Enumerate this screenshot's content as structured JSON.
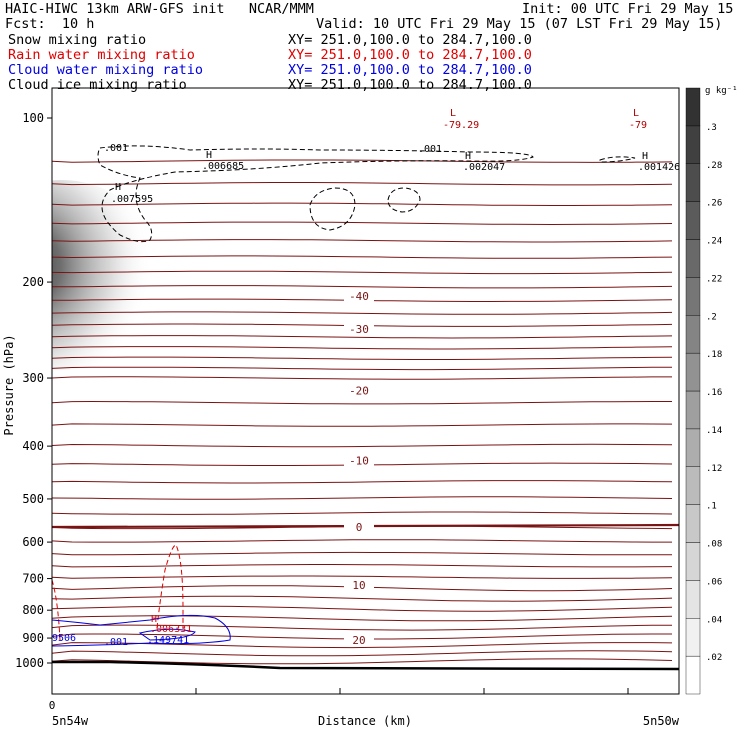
{
  "header": {
    "title_left": "HAIC-HIWC 13km ARW-GFS init   NCAR/MMM",
    "init": "Init: 00 UTC Fri 29 May 15",
    "fcst": "Fcst:  10 h",
    "valid": "Valid: 10 UTC Fri 29 May 15 (07 LST Fri 29 May 15)"
  },
  "fields": [
    {
      "label": "Snow mixing ratio",
      "xy": "XY= 251.0,100.0 to 284.7,100.0",
      "color": "#000000"
    },
    {
      "label": "Rain water mixing ratio",
      "xy": "XY= 251.0,100.0 to 284.7,100.0",
      "color": "#e00000"
    },
    {
      "label": "Cloud water mixing ratio",
      "xy": "XY= 251.0,100.0 to 284.7,100.0",
      "color": "#0000e0"
    },
    {
      "label": "Cloud ice mixing ratio",
      "xy": "XY= 251.0,100.0 to 284.7,100.0",
      "color": "#000000"
    }
  ],
  "chart_data": {
    "type": "cross-section",
    "ylabel": "Pressure (hPa)",
    "xlabel": "Distance (km)",
    "y_ticks": [
      100,
      200,
      300,
      400,
      500,
      600,
      700,
      800,
      900,
      1000
    ],
    "y_axis": "log-pressure, reversed",
    "x_tick_label": "0",
    "x_left_label": "5n54w",
    "x_right_label": "5n50w",
    "temperature_labels": [
      {
        "value": "-40",
        "p": 212
      },
      {
        "value": "-30",
        "p": 244
      },
      {
        "value": "-20",
        "p": 316
      },
      {
        "value": "-10",
        "p": 425
      },
      {
        "value": "0",
        "p": 563
      },
      {
        "value": "10",
        "p": 720
      },
      {
        "value": "20",
        "p": 908
      }
    ],
    "markers": [
      {
        "kind": "L",
        "value": "-79.29",
        "color": "#b00000"
      },
      {
        "kind": "L",
        "value": "-79",
        "color": "#b00000"
      },
      {
        "kind": "H",
        "value": ".006685",
        "color": "#000000"
      },
      {
        "kind": "H",
        "value": ".002047",
        "color": "#000000"
      },
      {
        "kind": "H",
        "value": ".001426",
        "color": "#000000"
      },
      {
        "kind": "H",
        "value": ".007595",
        "color": "#000000"
      },
      {
        "kind": "H",
        "value": ".006331",
        "color": "#e00000"
      },
      {
        "kind": "H",
        "value": ".149741",
        "color": "#0000e0"
      }
    ],
    "contour_labels": [
      {
        "value": ".001",
        "color": "#000000"
      },
      {
        "value": ".001",
        "color": "#000000"
      },
      {
        "value": ".001",
        "color": "#0000e0"
      },
      {
        "value": "9506",
        "color": "#0000e0"
      }
    ],
    "colorbar": {
      "unit": "g kg⁻¹",
      "levels": [
        ".02",
        ".04",
        ".06",
        ".08",
        ".1",
        ".12",
        ".14",
        ".16",
        ".18",
        ".2",
        ".22",
        ".24",
        ".26",
        ".28",
        ".3"
      ]
    }
  }
}
